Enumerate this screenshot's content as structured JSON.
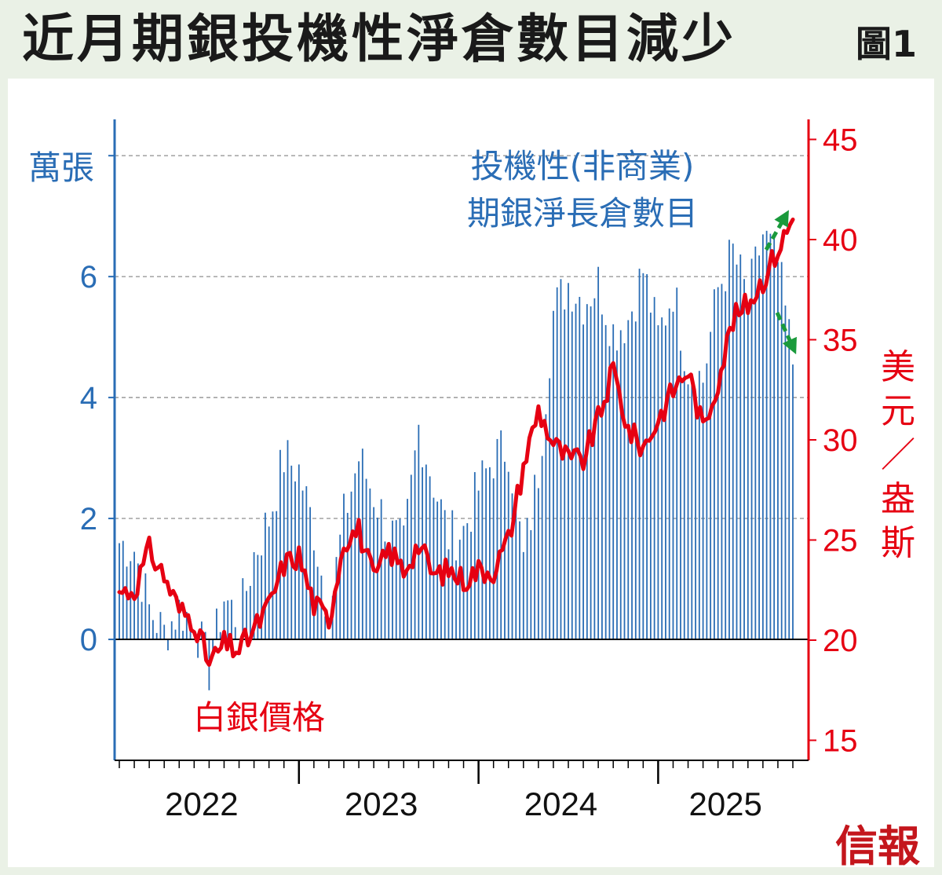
{
  "title": "近月期銀投機性淨倉數目減少",
  "figure_label": "圖1",
  "publisher": "信報",
  "colors": {
    "bars": "#2a6db5",
    "price": "#e60012",
    "arrows": "#1a9a3c",
    "background": "#eaf1e6"
  },
  "chart_data": {
    "type": "bar+line",
    "left_axis": {
      "unit": "萬張",
      "ticks": [
        0,
        2,
        4,
        6
      ],
      "range": [
        -2,
        8.6
      ],
      "color": "#2a6db5"
    },
    "right_axis": {
      "unit": "美元／盎斯",
      "ticks": [
        15,
        20,
        25,
        30,
        35,
        40,
        45
      ],
      "range": [
        14,
        46
      ],
      "color": "#e60012"
    },
    "x_axis": {
      "tick_labels": [
        "2022",
        "2023",
        "2024",
        "2025"
      ],
      "start": "2022-01",
      "end": "2025-10"
    },
    "gridlines": {
      "left_values": [
        2,
        4,
        6,
        8
      ],
      "style": "dashed"
    },
    "series": [
      {
        "name": "投機性(非商業)期銀淨長倉數目",
        "label_lines": [
          "投機性(非商業)",
          "期銀淨長倉數目"
        ],
        "type": "bar",
        "axis": "left",
        "x": [
          "2022-01",
          "2022-02",
          "2022-03",
          "2022-04",
          "2022-05",
          "2022-06",
          "2022-07",
          "2022-08",
          "2022-09",
          "2022-10",
          "2022-11",
          "2022-12",
          "2023-01",
          "2023-02",
          "2023-03",
          "2023-04",
          "2023-05",
          "2023-06",
          "2023-07",
          "2023-08",
          "2023-09",
          "2023-10",
          "2023-11",
          "2023-12",
          "2024-01",
          "2024-02",
          "2024-03",
          "2024-04",
          "2024-05",
          "2024-06",
          "2024-07",
          "2024-08",
          "2024-09",
          "2024-10",
          "2024-11",
          "2024-12",
          "2025-01",
          "2025-02",
          "2025-03",
          "2025-04",
          "2025-05",
          "2025-06",
          "2025-07",
          "2025-08",
          "2025-09",
          "2025-10"
        ],
        "values": [
          1.6,
          1.5,
          0.5,
          0.1,
          0.5,
          0.3,
          -0.5,
          0.7,
          0.3,
          1.4,
          2.0,
          3.0,
          2.8,
          1.8,
          0.4,
          2.0,
          3.0,
          2.4,
          1.8,
          1.5,
          3.5,
          2.6,
          1.7,
          1.8,
          2.5,
          3.0,
          3.2,
          1.3,
          2.8,
          5.4,
          5.9,
          5.6,
          5.9,
          5.1,
          5.3,
          6.1,
          5.0,
          5.8,
          4.5,
          4.3,
          5.8,
          6.4,
          5.6,
          6.7,
          6.2,
          4.6
        ]
      },
      {
        "name": "白銀價格",
        "type": "line",
        "axis": "right",
        "x": [
          "2022-01",
          "2022-02",
          "2022-03",
          "2022-04",
          "2022-05",
          "2022-06",
          "2022-07",
          "2022-08",
          "2022-09",
          "2022-10",
          "2022-11",
          "2022-12",
          "2023-01",
          "2023-02",
          "2023-03",
          "2023-04",
          "2023-05",
          "2023-06",
          "2023-07",
          "2023-08",
          "2023-09",
          "2023-10",
          "2023-11",
          "2023-12",
          "2024-01",
          "2024-02",
          "2024-03",
          "2024-04",
          "2024-05",
          "2024-06",
          "2024-07",
          "2024-08",
          "2024-09",
          "2024-10",
          "2024-11",
          "2024-12",
          "2025-01",
          "2025-02",
          "2025-03",
          "2025-04",
          "2025-05",
          "2025-06",
          "2025-07",
          "2025-08",
          "2025-09",
          "2025-10"
        ],
        "values": [
          22.4,
          22.5,
          24.5,
          23.2,
          21.5,
          21.0,
          18.8,
          19.8,
          19.5,
          20.5,
          21.7,
          23.8,
          24.2,
          21.8,
          21.0,
          25.0,
          25.5,
          23.0,
          24.5,
          23.5,
          24.8,
          23.2,
          23.5,
          23.0,
          23.5,
          23.5,
          25.0,
          28.7,
          31.5,
          29.8,
          29.0,
          29.0,
          31.0,
          33.5,
          30.5,
          29.6,
          31.0,
          32.5,
          33.5,
          30.5,
          33.0,
          36.0,
          36.8,
          38.0,
          39.5,
          41.0
        ]
      }
    ],
    "annotations": [
      {
        "type": "arrow",
        "direction": "up",
        "color": "#1a9a3c",
        "note": "price rising"
      },
      {
        "type": "arrow",
        "direction": "down",
        "color": "#1a9a3c",
        "note": "positions falling"
      }
    ]
  }
}
